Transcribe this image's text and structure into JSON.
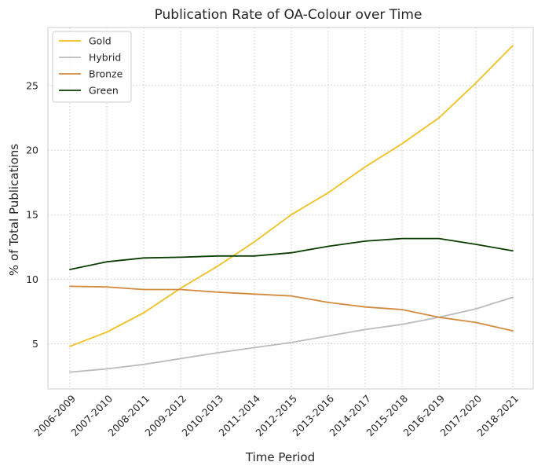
{
  "chart_data": {
    "type": "line",
    "title": "Publication Rate of OA-Colour over Time",
    "xlabel": "Time Period",
    "ylabel": "% of Total Publications",
    "categories": [
      "2006-2009",
      "2007-2010",
      "2008-2011",
      "2009-2012",
      "2010-2013",
      "2011-2014",
      "2012-2015",
      "2013-2016",
      "2014-2017",
      "2015-2018",
      "2016-2019",
      "2017-2020",
      "2018-2021"
    ],
    "yticks": [
      5,
      10,
      15,
      20,
      25
    ],
    "ylim": [
      1.5,
      29.5
    ],
    "grid": true,
    "legend_position": "top-left",
    "series": [
      {
        "name": "Gold",
        "color": "#f0c020",
        "values": [
          4.8,
          5.9,
          7.4,
          9.3,
          11.0,
          12.9,
          15.0,
          16.7,
          18.7,
          20.5,
          22.5,
          25.2,
          28.1
        ]
      },
      {
        "name": "Hybrid",
        "color": "#bbbbbb",
        "values": [
          2.8,
          3.05,
          3.4,
          3.85,
          4.3,
          4.7,
          5.1,
          5.6,
          6.1,
          6.5,
          7.05,
          7.7,
          8.6
        ]
      },
      {
        "name": "Bronze",
        "color": "#d38b3f",
        "values": [
          9.45,
          9.4,
          9.2,
          9.2,
          9.0,
          8.85,
          8.7,
          8.2,
          7.85,
          7.65,
          7.05,
          6.65,
          6.0
        ]
      },
      {
        "name": "Green",
        "color": "#0a3d00",
        "values": [
          10.75,
          11.35,
          11.65,
          11.7,
          11.8,
          11.8,
          12.05,
          12.55,
          12.95,
          13.15,
          13.15,
          12.7,
          12.2
        ]
      }
    ]
  }
}
